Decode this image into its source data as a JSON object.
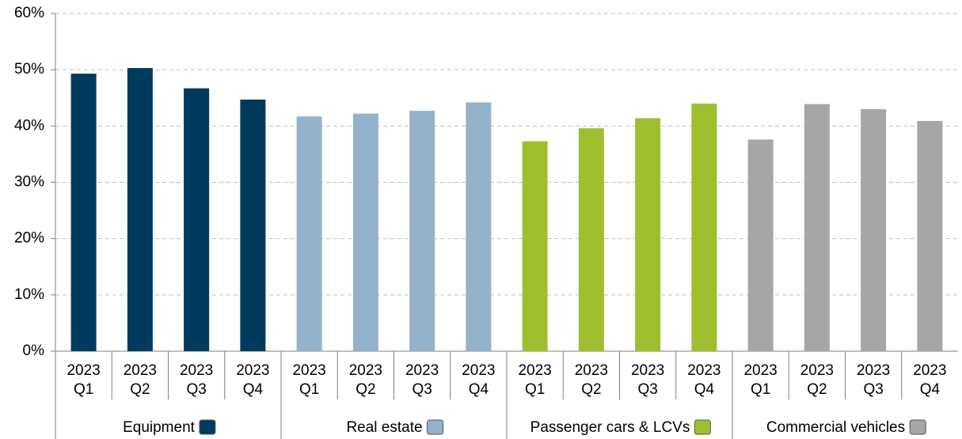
{
  "chart_data": {
    "type": "bar",
    "categories": [
      [
        "2023",
        "Q1"
      ],
      [
        "2023",
        "Q2"
      ],
      [
        "2023",
        "Q3"
      ],
      [
        "2023",
        "Q4"
      ]
    ],
    "series": [
      {
        "name": "Equipment",
        "color": "#003a5c",
        "values": [
          49.3,
          50.3,
          46.7,
          44.7
        ]
      },
      {
        "name": "Real estate",
        "color": "#93b2cb",
        "values": [
          41.7,
          42.2,
          42.7,
          44.2
        ]
      },
      {
        "name": "Passenger cars & LCVs",
        "color": "#a0bf2f",
        "values": [
          37.3,
          39.6,
          41.4,
          44.0
        ]
      },
      {
        "name": "Commercial vehicles",
        "color": "#a6a6a6",
        "values": [
          37.6,
          43.9,
          43.0,
          40.9
        ]
      }
    ],
    "ylim": [
      0,
      60
    ],
    "yticks": [
      {
        "value": 0,
        "label": "0%"
      },
      {
        "value": 10,
        "label": "10%"
      },
      {
        "value": 20,
        "label": "20%"
      },
      {
        "value": 30,
        "label": "30%"
      },
      {
        "value": 40,
        "label": "40%"
      },
      {
        "value": 50,
        "label": "50%"
      },
      {
        "value": 60,
        "label": "60%"
      }
    ],
    "grid": true
  }
}
